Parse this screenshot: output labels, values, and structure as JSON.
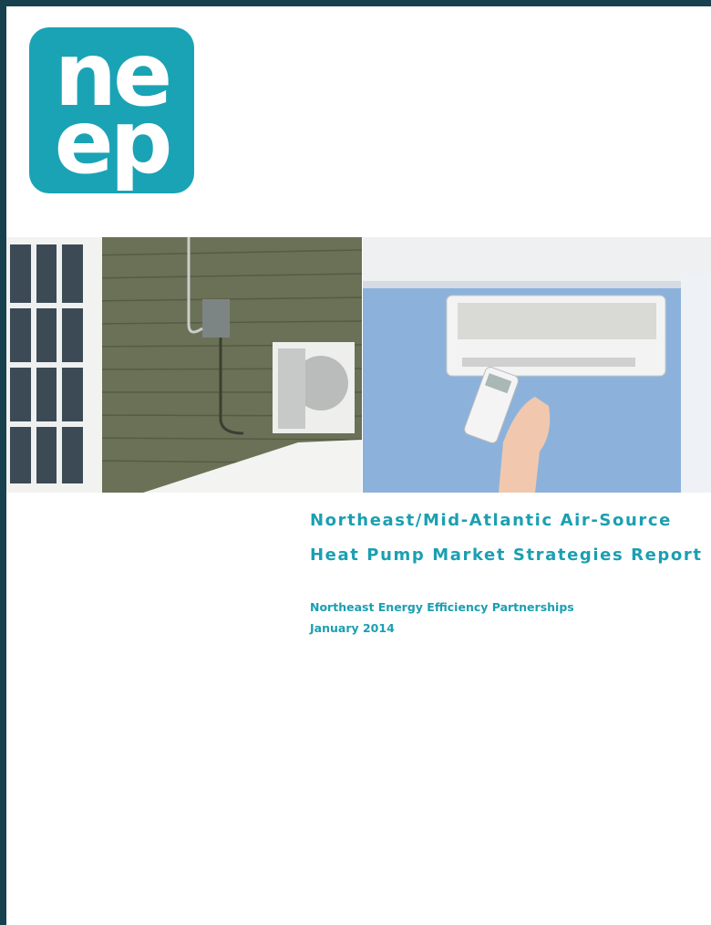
{
  "logo": {
    "lines": [
      "ne",
      "ep"
    ]
  },
  "title": {
    "lines": [
      "Northeast/Mid-Atlantic Air-Source",
      "Heat Pump Market Strategies Report"
    ]
  },
  "author": "Northeast Energy Efficiency Partnerships",
  "date": "January 2014"
}
